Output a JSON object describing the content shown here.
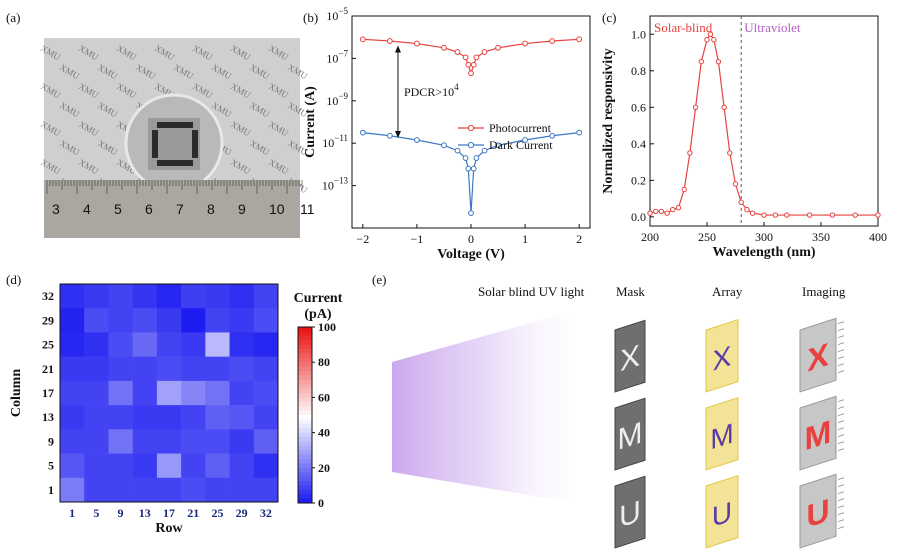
{
  "panels": {
    "a": "(a)",
    "b": "(b)",
    "c": "(c)",
    "d": "(d)",
    "e": "(e)"
  },
  "photo": {
    "watermark": "XMU",
    "ruler_numbers": [
      "3",
      "4",
      "5",
      "6",
      "7",
      "8",
      "9",
      "10",
      "11"
    ]
  },
  "chart_data": [
    {
      "type": "line",
      "panel": "b",
      "xlabel": "Voltage (V)",
      "ylabel": "Current (A)",
      "xlim": [
        -2.2,
        2.2
      ],
      "ylim_log10": [
        -15,
        -5
      ],
      "xticks": [
        "-2",
        "-1",
        "0",
        "1",
        "2"
      ],
      "yticks": [
        "10-5",
        "10-7",
        "10-9",
        "10-11",
        "10-13"
      ],
      "annotation": "PDCR>10",
      "annotation_sup": "4",
      "series": [
        {
          "name": "Photocurrent",
          "color": "#e8413e",
          "x": [
            -2,
            -1.5,
            -1,
            -0.5,
            -0.25,
            -0.1,
            -0.05,
            0,
            0.05,
            0.1,
            0.25,
            0.5,
            1,
            1.5,
            2
          ],
          "log10_y": [
            -6.1,
            -6.18,
            -6.3,
            -6.5,
            -6.7,
            -6.95,
            -7.3,
            -7.7,
            -7.3,
            -6.95,
            -6.7,
            -6.5,
            -6.3,
            -6.18,
            -6.1
          ]
        },
        {
          "name": "Dark Current",
          "color": "#3b78c4",
          "x": [
            -2,
            -1.5,
            -1,
            -0.5,
            -0.25,
            -0.1,
            -0.05,
            0,
            0.05,
            0.1,
            0.25,
            0.5,
            1,
            1.5,
            2
          ],
          "log10_y": [
            -10.5,
            -10.65,
            -10.85,
            -11.1,
            -11.35,
            -11.7,
            -12.2,
            -14.3,
            -12.2,
            -11.7,
            -11.35,
            -11.1,
            -10.85,
            -10.65,
            -10.5
          ]
        }
      ]
    },
    {
      "type": "line",
      "panel": "c",
      "xlabel": "Wavelength (nm)",
      "ylabel": "Normalized responsivity",
      "xlim": [
        200,
        400
      ],
      "ylim": [
        -0.05,
        1.1
      ],
      "xticks": [
        "200",
        "250",
        "300",
        "350",
        "400"
      ],
      "yticks": [
        "0.0",
        "0.2",
        "0.4",
        "0.6",
        "0.8",
        "1.0"
      ],
      "region_left": "Solar-blind",
      "region_right": "Ultraviolet",
      "divider_x": 280,
      "series": [
        {
          "name": "Responsivity",
          "color": "#e8413e",
          "x": [
            200,
            205,
            210,
            215,
            220,
            225,
            230,
            235,
            240,
            245,
            250,
            253,
            256,
            260,
            265,
            270,
            275,
            280,
            285,
            290,
            300,
            310,
            320,
            340,
            360,
            380,
            400
          ],
          "y": [
            0.02,
            0.03,
            0.03,
            0.02,
            0.04,
            0.05,
            0.15,
            0.35,
            0.6,
            0.85,
            0.97,
            1.0,
            0.97,
            0.85,
            0.6,
            0.35,
            0.18,
            0.08,
            0.04,
            0.02,
            0.01,
            0.01,
            0.01,
            0.01,
            0.01,
            0.01,
            0.01
          ]
        }
      ]
    },
    {
      "type": "heatmap",
      "panel": "d",
      "xlabel": "Row",
      "ylabel": "Column",
      "xticks": [
        "1",
        "5",
        "9",
        "13",
        "17",
        "21",
        "25",
        "29",
        "32"
      ],
      "yticks": [
        "32",
        "29",
        "25",
        "21",
        "17",
        "13",
        "9",
        "5",
        "1"
      ],
      "colorbar_title": "Current",
      "colorbar_unit": "(pA)",
      "colorbar_ticks": [
        "100",
        "80",
        "60",
        "40",
        "20",
        "0"
      ],
      "range": [
        0,
        100
      ],
      "values": [
        [
          6,
          8,
          10,
          7,
          4,
          9,
          8,
          6,
          10
        ],
        [
          3,
          12,
          10,
          12,
          8,
          2,
          10,
          8,
          12
        ],
        [
          4,
          6,
          12,
          18,
          10,
          8,
          35,
          6,
          4
        ],
        [
          8,
          8,
          10,
          10,
          12,
          10,
          10,
          12,
          10
        ],
        [
          10,
          10,
          20,
          10,
          30,
          24,
          20,
          10,
          12
        ],
        [
          8,
          10,
          10,
          8,
          8,
          10,
          16,
          14,
          10
        ],
        [
          10,
          10,
          20,
          10,
          10,
          12,
          12,
          8,
          16
        ],
        [
          14,
          10,
          10,
          8,
          28,
          10,
          16,
          10,
          6
        ],
        [
          22,
          10,
          10,
          10,
          10,
          12,
          10,
          10,
          10
        ]
      ]
    }
  ],
  "schematic": {
    "light_label": "Solar blind UV light",
    "mask_title": "Mask",
    "array_title": "Array",
    "imaging_title": "Imaging",
    "letters": [
      "X",
      "M",
      "U"
    ]
  }
}
